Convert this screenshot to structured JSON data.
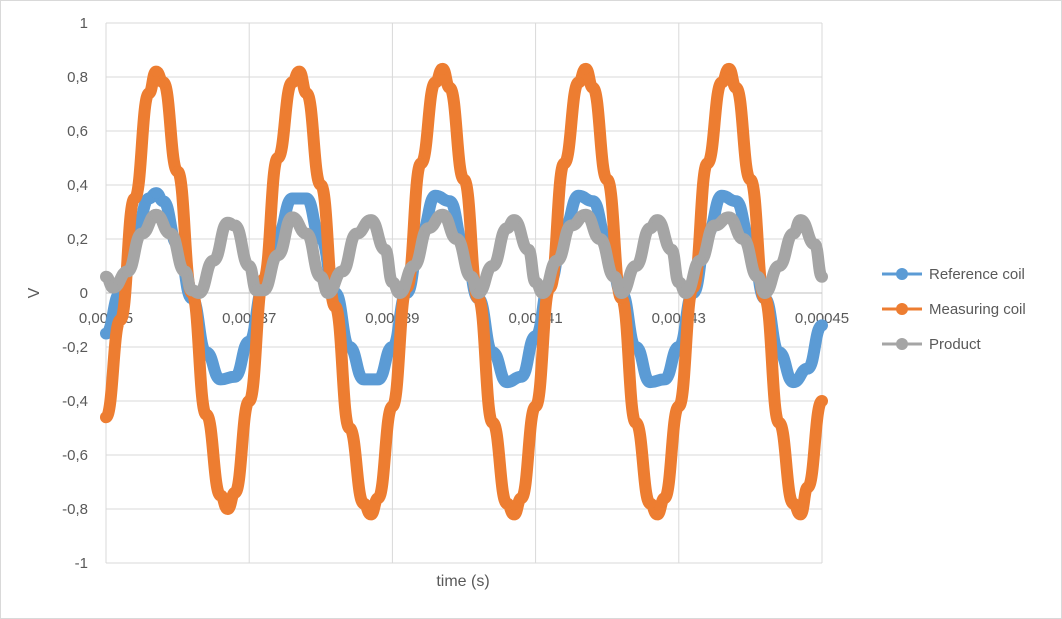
{
  "chart_data": {
    "type": "scatter",
    "title": "",
    "xlabel": "time (s)",
    "ylabel": "V",
    "xlim": [
      0.00035,
      0.00045
    ],
    "ylim": [
      -1,
      1
    ],
    "x_ticks": [
      "0,00035",
      "0,00037",
      "0,00039",
      "0,00041",
      "0,00043",
      "0,00045"
    ],
    "y_ticks": [
      "1",
      "0,8",
      "0,6",
      "0,4",
      "0,2",
      "0",
      "-0,2",
      "-0,4",
      "-0,6",
      "-0,8",
      "-1"
    ],
    "grid": true,
    "legend_position": "right",
    "series": [
      {
        "name": "Reference coil",
        "color": "#5b9bd5",
        "points": [
          [
            0.00035,
            -0.15
          ],
          [
            0.000352,
            0.0
          ],
          [
            0.000354,
            0.2
          ],
          [
            0.000356,
            0.35
          ],
          [
            0.000357,
            0.37
          ],
          [
            0.000358,
            0.34
          ],
          [
            0.00036,
            0.18
          ],
          [
            0.000362,
            -0.02
          ],
          [
            0.000364,
            -0.22
          ],
          [
            0.000366,
            -0.32
          ],
          [
            0.000368,
            -0.31
          ],
          [
            0.00037,
            -0.18
          ],
          [
            0.000372,
            0.02
          ],
          [
            0.000374,
            0.22
          ],
          [
            0.000376,
            0.35
          ],
          [
            0.000378,
            0.35
          ],
          [
            0.00038,
            0.2
          ],
          [
            0.000382,
            0.0
          ],
          [
            0.000384,
            -0.2
          ],
          [
            0.000386,
            -0.32
          ],
          [
            0.000388,
            -0.32
          ],
          [
            0.00039,
            -0.2
          ],
          [
            0.000392,
            0.0
          ],
          [
            0.000394,
            0.22
          ],
          [
            0.000396,
            0.36
          ],
          [
            0.000398,
            0.34
          ],
          [
            0.0004,
            0.18
          ],
          [
            0.000402,
            -0.02
          ],
          [
            0.000404,
            -0.22
          ],
          [
            0.000406,
            -0.33
          ],
          [
            0.000408,
            -0.31
          ],
          [
            0.00041,
            -0.16
          ],
          [
            0.000412,
            0.04
          ],
          [
            0.000414,
            0.24
          ],
          [
            0.000416,
            0.36
          ],
          [
            0.000418,
            0.34
          ],
          [
            0.00042,
            0.2
          ],
          [
            0.000422,
            0.0
          ],
          [
            0.000424,
            -0.2
          ],
          [
            0.000426,
            -0.33
          ],
          [
            0.000428,
            -0.32
          ],
          [
            0.00043,
            -0.2
          ],
          [
            0.000432,
            0.0
          ],
          [
            0.000434,
            0.22
          ],
          [
            0.000436,
            0.36
          ],
          [
            0.000438,
            0.34
          ],
          [
            0.00044,
            0.2
          ],
          [
            0.000442,
            -0.02
          ],
          [
            0.000444,
            -0.22
          ],
          [
            0.000446,
            -0.33
          ],
          [
            0.000448,
            -0.28
          ],
          [
            0.00045,
            -0.12
          ]
        ]
      },
      {
        "name": "Measuring coil",
        "color": "#ed7d31",
        "points": [
          [
            0.00035,
            -0.46
          ],
          [
            0.000352,
            -0.1
          ],
          [
            0.000354,
            0.35
          ],
          [
            0.000356,
            0.74
          ],
          [
            0.000357,
            0.82
          ],
          [
            0.000358,
            0.78
          ],
          [
            0.00036,
            0.45
          ],
          [
            0.000362,
            0.0
          ],
          [
            0.000364,
            -0.45
          ],
          [
            0.000366,
            -0.75
          ],
          [
            0.000367,
            -0.8
          ],
          [
            0.000368,
            -0.74
          ],
          [
            0.00037,
            -0.4
          ],
          [
            0.000372,
            0.05
          ],
          [
            0.000374,
            0.5
          ],
          [
            0.000376,
            0.78
          ],
          [
            0.000377,
            0.82
          ],
          [
            0.000378,
            0.74
          ],
          [
            0.00038,
            0.4
          ],
          [
            0.000382,
            -0.05
          ],
          [
            0.000384,
            -0.5
          ],
          [
            0.000386,
            -0.78
          ],
          [
            0.000387,
            -0.82
          ],
          [
            0.000388,
            -0.76
          ],
          [
            0.00039,
            -0.42
          ],
          [
            0.000392,
            0.02
          ],
          [
            0.000394,
            0.48
          ],
          [
            0.000396,
            0.78
          ],
          [
            0.000397,
            0.83
          ],
          [
            0.000398,
            0.76
          ],
          [
            0.0004,
            0.42
          ],
          [
            0.000402,
            -0.02
          ],
          [
            0.000404,
            -0.48
          ],
          [
            0.000406,
            -0.78
          ],
          [
            0.000407,
            -0.82
          ],
          [
            0.000408,
            -0.76
          ],
          [
            0.00041,
            -0.42
          ],
          [
            0.000412,
            0.02
          ],
          [
            0.000414,
            0.48
          ],
          [
            0.000416,
            0.78
          ],
          [
            0.000417,
            0.83
          ],
          [
            0.000418,
            0.76
          ],
          [
            0.00042,
            0.42
          ],
          [
            0.000422,
            -0.02
          ],
          [
            0.000424,
            -0.48
          ],
          [
            0.000426,
            -0.78
          ],
          [
            0.000427,
            -0.82
          ],
          [
            0.000428,
            -0.76
          ],
          [
            0.00043,
            -0.42
          ],
          [
            0.000432,
            0.02
          ],
          [
            0.000434,
            0.48
          ],
          [
            0.000436,
            0.78
          ],
          [
            0.000437,
            0.83
          ],
          [
            0.000438,
            0.76
          ],
          [
            0.00044,
            0.42
          ],
          [
            0.000442,
            -0.02
          ],
          [
            0.000444,
            -0.48
          ],
          [
            0.000446,
            -0.78
          ],
          [
            0.000447,
            -0.82
          ],
          [
            0.000448,
            -0.72
          ],
          [
            0.00045,
            -0.4
          ]
        ]
      },
      {
        "name": "Product",
        "color": "#a5a5a5",
        "points": [
          [
            0.00035,
            0.06
          ],
          [
            0.000351,
            0.02
          ],
          [
            0.000353,
            0.08
          ],
          [
            0.000355,
            0.22
          ],
          [
            0.000357,
            0.29
          ],
          [
            0.000359,
            0.22
          ],
          [
            0.000361,
            0.08
          ],
          [
            0.000362,
            0.01
          ],
          [
            0.000363,
            0.0
          ],
          [
            0.000365,
            0.12
          ],
          [
            0.000367,
            0.26
          ],
          [
            0.000368,
            0.25
          ],
          [
            0.00037,
            0.1
          ],
          [
            0.000371,
            0.01
          ],
          [
            0.000372,
            0.01
          ],
          [
            0.000374,
            0.14
          ],
          [
            0.000376,
            0.28
          ],
          [
            0.000378,
            0.22
          ],
          [
            0.00038,
            0.06
          ],
          [
            0.000381,
            0.0
          ],
          [
            0.000383,
            0.08
          ],
          [
            0.000385,
            0.22
          ],
          [
            0.000387,
            0.27
          ],
          [
            0.000389,
            0.16
          ],
          [
            0.00039,
            0.04
          ],
          [
            0.000391,
            0.0
          ],
          [
            0.000393,
            0.1
          ],
          [
            0.000395,
            0.24
          ],
          [
            0.000397,
            0.29
          ],
          [
            0.000399,
            0.2
          ],
          [
            0.000401,
            0.06
          ],
          [
            0.000402,
            0.0
          ],
          [
            0.000404,
            0.1
          ],
          [
            0.000406,
            0.24
          ],
          [
            0.000407,
            0.27
          ],
          [
            0.000409,
            0.16
          ],
          [
            0.00041,
            0.04
          ],
          [
            0.000411,
            0.0
          ],
          [
            0.000413,
            0.12
          ],
          [
            0.000415,
            0.25
          ],
          [
            0.000417,
            0.29
          ],
          [
            0.000419,
            0.2
          ],
          [
            0.000421,
            0.06
          ],
          [
            0.000422,
            0.0
          ],
          [
            0.000424,
            0.1
          ],
          [
            0.000426,
            0.24
          ],
          [
            0.000427,
            0.27
          ],
          [
            0.000429,
            0.16
          ],
          [
            0.00043,
            0.04
          ],
          [
            0.000431,
            0.0
          ],
          [
            0.000433,
            0.12
          ],
          [
            0.000435,
            0.25
          ],
          [
            0.000437,
            0.28
          ],
          [
            0.000439,
            0.2
          ],
          [
            0.000441,
            0.06
          ],
          [
            0.000442,
            0.0
          ],
          [
            0.000444,
            0.1
          ],
          [
            0.000446,
            0.22
          ],
          [
            0.000447,
            0.27
          ],
          [
            0.000449,
            0.18
          ],
          [
            0.00045,
            0.06
          ]
        ]
      }
    ]
  }
}
